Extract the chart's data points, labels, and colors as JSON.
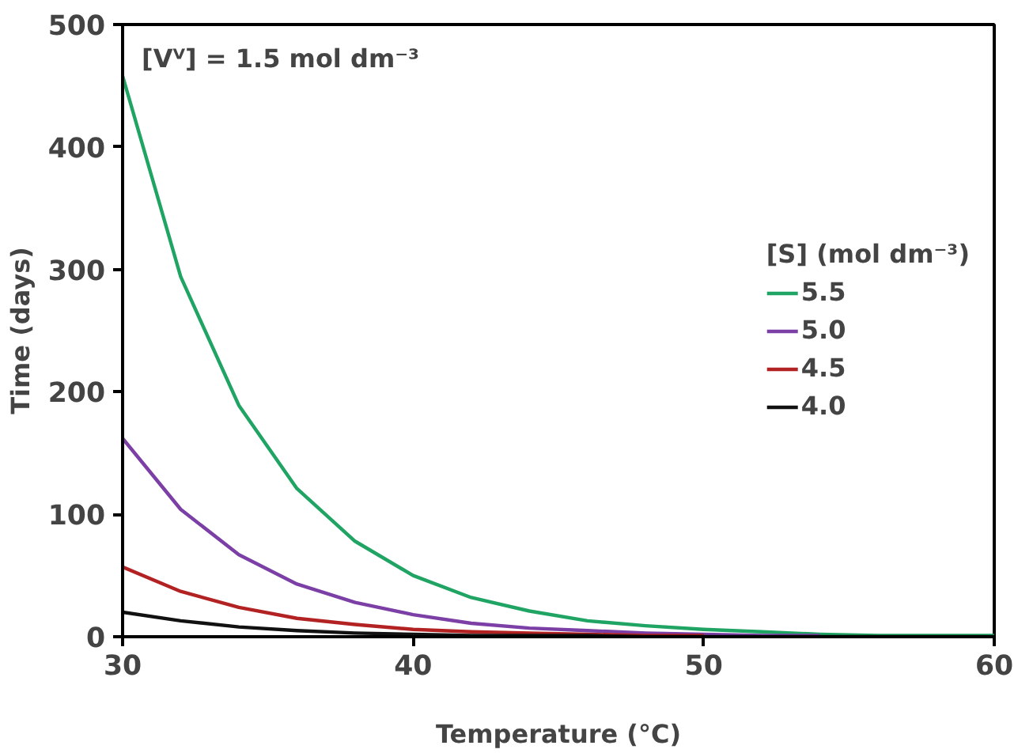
{
  "chart_data": {
    "type": "line",
    "xlabel": "Temperature (°C)",
    "ylabel": "Time (days)",
    "legend_title": "[S] (mol dm⁻³)",
    "legend": "right",
    "grid": false,
    "marker": "none",
    "line_style": "solid",
    "annotations": [
      "[Vⱽ] = 1.5 mol dm⁻³"
    ],
    "x": [
      30,
      32,
      34,
      36,
      38,
      40,
      42,
      44,
      46,
      48,
      50,
      52,
      54,
      56,
      58,
      60
    ],
    "xlim": [
      30,
      60
    ],
    "xticks": [
      30,
      40,
      50,
      60
    ],
    "ylim": [
      0,
      500
    ],
    "yticks": [
      0,
      100,
      200,
      300,
      400,
      500
    ],
    "series": [
      {
        "name": "5.5",
        "color": "#1fa463",
        "values": [
          458,
          294,
          189,
          121,
          78,
          50,
          32,
          21,
          13,
          9,
          6,
          4,
          2,
          1,
          1,
          1
        ]
      },
      {
        "name": "5.0",
        "color": "#7b3fa6",
        "values": [
          162,
          104,
          67,
          43,
          28,
          18,
          11,
          7,
          5,
          3,
          2,
          1,
          1,
          null,
          null,
          null
        ]
      },
      {
        "name": "4.5",
        "color": "#b22222",
        "values": [
          57,
          37,
          24,
          15,
          10,
          6,
          4,
          3,
          2,
          1,
          1,
          null,
          null,
          null,
          null,
          null
        ]
      },
      {
        "name": "4.0",
        "color": "#111111",
        "values": [
          20,
          13,
          8,
          5,
          3,
          2,
          1,
          1,
          1,
          0,
          0,
          0,
          0,
          0,
          0,
          0
        ]
      }
    ]
  }
}
